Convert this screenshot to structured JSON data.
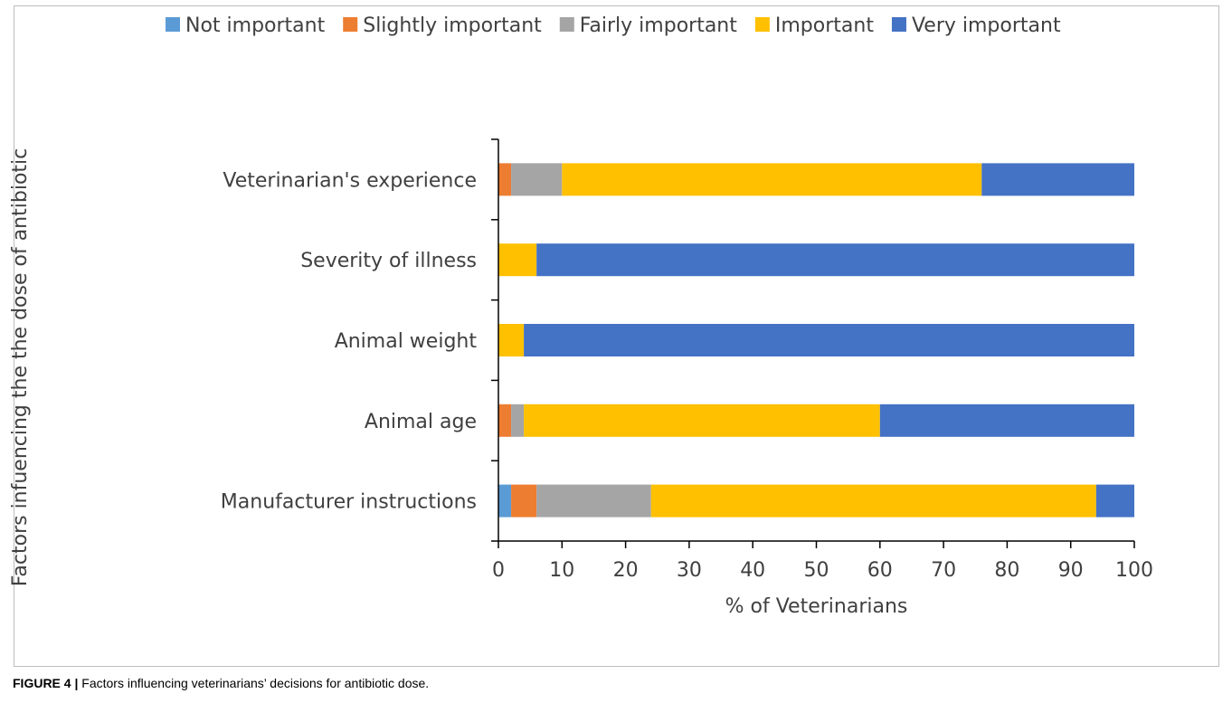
{
  "caption": {
    "label": "FIGURE 4 |",
    "text": "Factors influencing veterinarians’ decisions for antibiotic dose."
  },
  "chart_data": {
    "type": "bar",
    "orientation": "horizontal",
    "stacked": true,
    "xlabel": "% of Veterinarians",
    "ylabel": "Factors infuencing the the dose of antibiotic",
    "xlim": [
      0,
      100
    ],
    "xticks": [
      0,
      10,
      20,
      30,
      40,
      50,
      60,
      70,
      80,
      90,
      100
    ],
    "grid": false,
    "legend_position": "top",
    "categories": [
      "Veterinarian's experience",
      "Severity of illness",
      "Animal weight",
      "Animal age",
      "Manufacturer instructions"
    ],
    "series": [
      {
        "name": "Not important",
        "color": "#5b9bd5",
        "values": [
          0,
          0,
          0,
          0,
          2
        ]
      },
      {
        "name": "Slightly important",
        "color": "#ed7d31",
        "values": [
          2,
          0,
          0,
          2,
          4
        ]
      },
      {
        "name": "Fairly important",
        "color": "#a5a5a5",
        "values": [
          8,
          0,
          0,
          2,
          18
        ]
      },
      {
        "name": "Important",
        "color": "#ffc000",
        "values": [
          66,
          6,
          4,
          56,
          70
        ]
      },
      {
        "name": "Very important",
        "color": "#4472c4",
        "values": [
          24,
          94,
          96,
          40,
          6
        ]
      }
    ]
  }
}
